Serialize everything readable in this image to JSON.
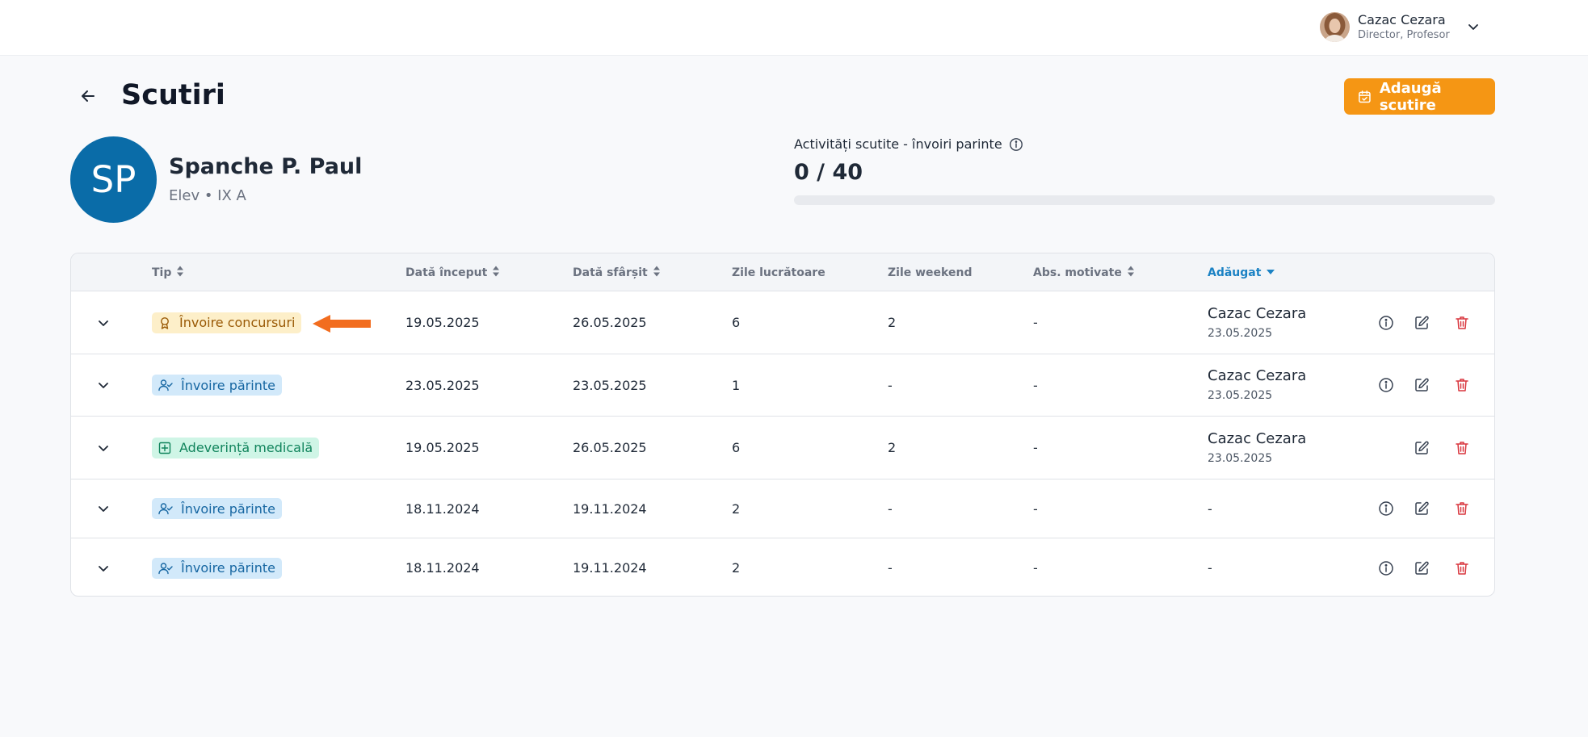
{
  "header": {
    "user_name": "Cazac Cezara",
    "user_role": "Director, Profesor",
    "avatar_icon": "user-photo",
    "menu_icon": "chevron-down-icon"
  },
  "page": {
    "title": "Scutiri",
    "back_icon": "arrow-left-icon",
    "add_button_label": "Adaugă scutire",
    "add_button_icon": "calendar-check-icon",
    "accent_color": "#f59614"
  },
  "student": {
    "initials": "SP",
    "name": "Spanche P. Paul",
    "meta": "Elev • IX A",
    "avatar_color": "#0a6ca8"
  },
  "quota": {
    "label": "Activități scutite - învoiri parinte",
    "value_text": "0 / 40",
    "used": 0,
    "total": 40,
    "info_icon": "info-icon"
  },
  "table": {
    "columns": [
      {
        "key": "tip",
        "label": "Tip",
        "sortable": true,
        "active": false
      },
      {
        "key": "start",
        "label": "Dată început",
        "sortable": true,
        "active": false
      },
      {
        "key": "end",
        "label": "Dată sfârșit",
        "sortable": true,
        "active": false
      },
      {
        "key": "workdays",
        "label": "Zile lucrătoare",
        "sortable": false,
        "active": false
      },
      {
        "key": "weekend",
        "label": "Zile weekend",
        "sortable": false,
        "active": false
      },
      {
        "key": "abs",
        "label": "Abs. motivate",
        "sortable": true,
        "active": false
      },
      {
        "key": "added",
        "label": "Adăugat",
        "sortable": true,
        "active": true,
        "sort_dir": "desc"
      }
    ],
    "rows": [
      {
        "type": "Învoire concursuri",
        "type_style": "orange",
        "type_icon": "award-icon",
        "start": "19.05.2025",
        "end": "26.05.2025",
        "workdays": "6",
        "weekend": "2",
        "abs": "-",
        "added_by": "Cazac Cezara",
        "added_date": "23.05.2025",
        "has_info": true
      },
      {
        "type": "Învoire părinte",
        "type_style": "blue",
        "type_icon": "user-check-icon",
        "start": "23.05.2025",
        "end": "23.05.2025",
        "workdays": "1",
        "weekend": "-",
        "abs": "-",
        "added_by": "Cazac Cezara",
        "added_date": "23.05.2025",
        "has_info": true
      },
      {
        "type": "Adeverință medicală",
        "type_style": "green",
        "type_icon": "medical-plus-icon",
        "start": "19.05.2025",
        "end": "26.05.2025",
        "workdays": "6",
        "weekend": "2",
        "abs": "-",
        "added_by": "Cazac Cezara",
        "added_date": "23.05.2025",
        "has_info": false
      },
      {
        "type": "Învoire părinte",
        "type_style": "blue",
        "type_icon": "user-check-icon",
        "start": "18.11.2024",
        "end": "19.11.2024",
        "workdays": "2",
        "weekend": "-",
        "abs": "-",
        "added_by": "-",
        "added_date": "",
        "has_info": true
      },
      {
        "type": "Învoire părinte",
        "type_style": "blue",
        "type_icon": "user-check-icon",
        "start": "18.11.2024",
        "end": "19.11.2024",
        "workdays": "2",
        "weekend": "-",
        "abs": "-",
        "added_by": "-",
        "added_date": "",
        "has_info": true
      }
    ],
    "row_actions": [
      "info-icon",
      "edit-icon",
      "trash-icon"
    ]
  },
  "annotation": {
    "pointer_icon": "orange-arrow-left-icon",
    "color": "#f26d1f"
  }
}
